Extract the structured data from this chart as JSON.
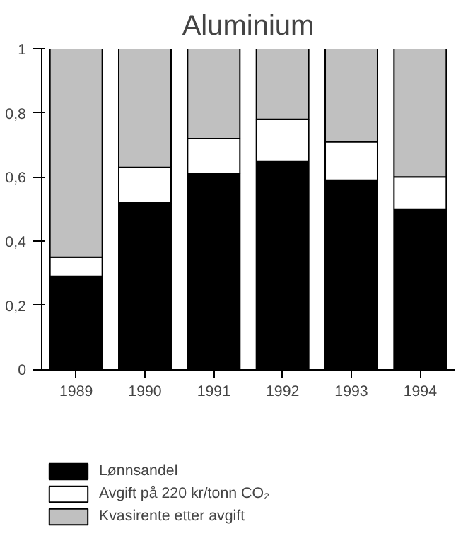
{
  "chart_data": {
    "type": "bar",
    "title": "Aluminium",
    "stacked": true,
    "categories": [
      "1989",
      "1990",
      "1991",
      "1992",
      "1993",
      "1994"
    ],
    "series": [
      {
        "name": "Lønnsandel",
        "color": "#000000",
        "values": [
          0.29,
          0.52,
          0.61,
          0.65,
          0.59,
          0.5
        ]
      },
      {
        "name": "Avgift på 220 kr/tonn CO₂",
        "color": "#ffffff",
        "values": [
          0.06,
          0.11,
          0.11,
          0.13,
          0.12,
          0.1
        ]
      },
      {
        "name": "Kvasirente etter avgift",
        "color": "#c0c0c0",
        "values": [
          0.65,
          0.37,
          0.28,
          0.22,
          0.29,
          0.4
        ]
      }
    ],
    "ylim": [
      0,
      1
    ],
    "yticks": [
      0,
      {
        "value": 0.2,
        "label": "0,2"
      },
      {
        "value": 0.4,
        "label": "0,4"
      },
      {
        "value": 0.6,
        "label": "0,6"
      },
      {
        "value": 0.8,
        "label": "0,8"
      },
      1
    ],
    "grid": false,
    "legend": "bottom"
  }
}
